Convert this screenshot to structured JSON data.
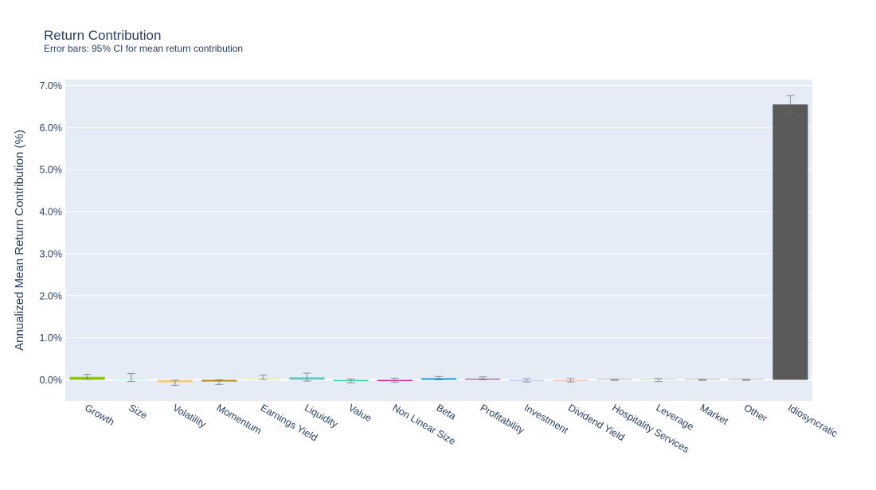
{
  "chart_data": {
    "type": "bar",
    "title": "Return Contribution",
    "subtitle": "Error bars: 95% CI for mean return contribution",
    "xlabel": "",
    "ylabel": "Annualized Mean Return Contribution (%)",
    "ylim": [
      -0.5,
      7.1
    ],
    "yticks": [
      0,
      1,
      2,
      3,
      4,
      5,
      6,
      7
    ],
    "ytick_labels": [
      "0.0%",
      "1.0%",
      "2.0%",
      "3.0%",
      "4.0%",
      "5.0%",
      "6.0%",
      "7.0%"
    ],
    "grid": true,
    "categories": [
      "Growth",
      "Size",
      "Volatility",
      "Momentum",
      "Earnings Yield",
      "Liquidity",
      "Value",
      "Non Linear Size",
      "Beta",
      "Profitability",
      "Investment",
      "Dividend Yield",
      "Hospitality Services",
      "Leverage",
      "Market",
      "Other",
      "Idiosyncratic"
    ],
    "values": [
      0.07,
      0.03,
      -0.06,
      -0.04,
      0.05,
      0.06,
      -0.02,
      -0.01,
      0.04,
      0.03,
      -0.01,
      -0.01,
      0.0,
      0.0,
      0.0,
      0.0,
      6.55
    ],
    "error_low": [
      0.01,
      -0.04,
      -0.13,
      -0.11,
      0.01,
      -0.03,
      -0.07,
      -0.06,
      0.0,
      0.0,
      -0.05,
      -0.05,
      -0.01,
      -0.04,
      -0.01,
      -0.01,
      6.34
    ],
    "error_high": [
      0.13,
      0.15,
      -0.01,
      0.0,
      0.11,
      0.16,
      0.02,
      0.04,
      0.08,
      0.07,
      0.03,
      0.03,
      0.01,
      0.03,
      0.01,
      0.01,
      6.76
    ],
    "colors": [
      "#8dc21f",
      "#c6f5f0",
      "#f6cc80",
      "#b8901b",
      "#eef2b8",
      "#6fc7c0",
      "#2fd9a8",
      "#e52592",
      "#1aa3d9",
      "#9a7ea8",
      "#c2cfe6",
      "#f1c2c2",
      "#cccccc",
      "#d7e3cf",
      "#cccccc",
      "#cccccc",
      "#5a5a5a"
    ]
  }
}
